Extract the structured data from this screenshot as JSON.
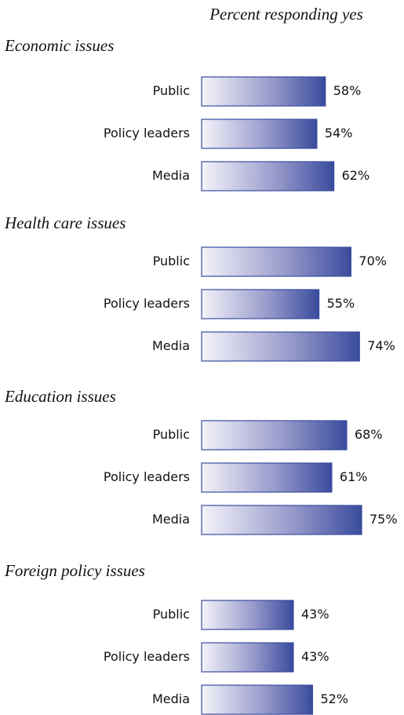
{
  "chart_data": [
    {
      "type": "bar",
      "subtitle": "Percent responding yes",
      "title": "Economic issues",
      "categories": [
        "Public",
        "Policy leaders",
        "Media"
      ],
      "values": [
        58,
        54,
        62
      ],
      "value_labels": [
        "58%",
        "54%",
        "62%"
      ],
      "color": "#3a4c9e"
    },
    {
      "type": "bar",
      "title": "Health care issues",
      "categories": [
        "Public",
        "Policy leaders",
        "Media"
      ],
      "values": [
        70,
        55,
        74
      ],
      "value_labels": [
        "70%",
        "55%",
        "74%"
      ],
      "color": "#3a4c9e"
    },
    {
      "type": "bar",
      "title": "Education issues",
      "categories": [
        "Public",
        "Policy leaders",
        "Media"
      ],
      "values": [
        68,
        61,
        75
      ],
      "value_labels": [
        "68%",
        "61%",
        "75%"
      ],
      "color": "#3a4c9e"
    },
    {
      "type": "bar",
      "title": "Foreign policy issues",
      "categories": [
        "Public",
        "Policy leaders",
        "Media"
      ],
      "values": [
        43,
        43,
        52
      ],
      "value_labels": [
        "43%",
        "43%",
        "52%"
      ],
      "color": "#3a4c9e"
    }
  ]
}
